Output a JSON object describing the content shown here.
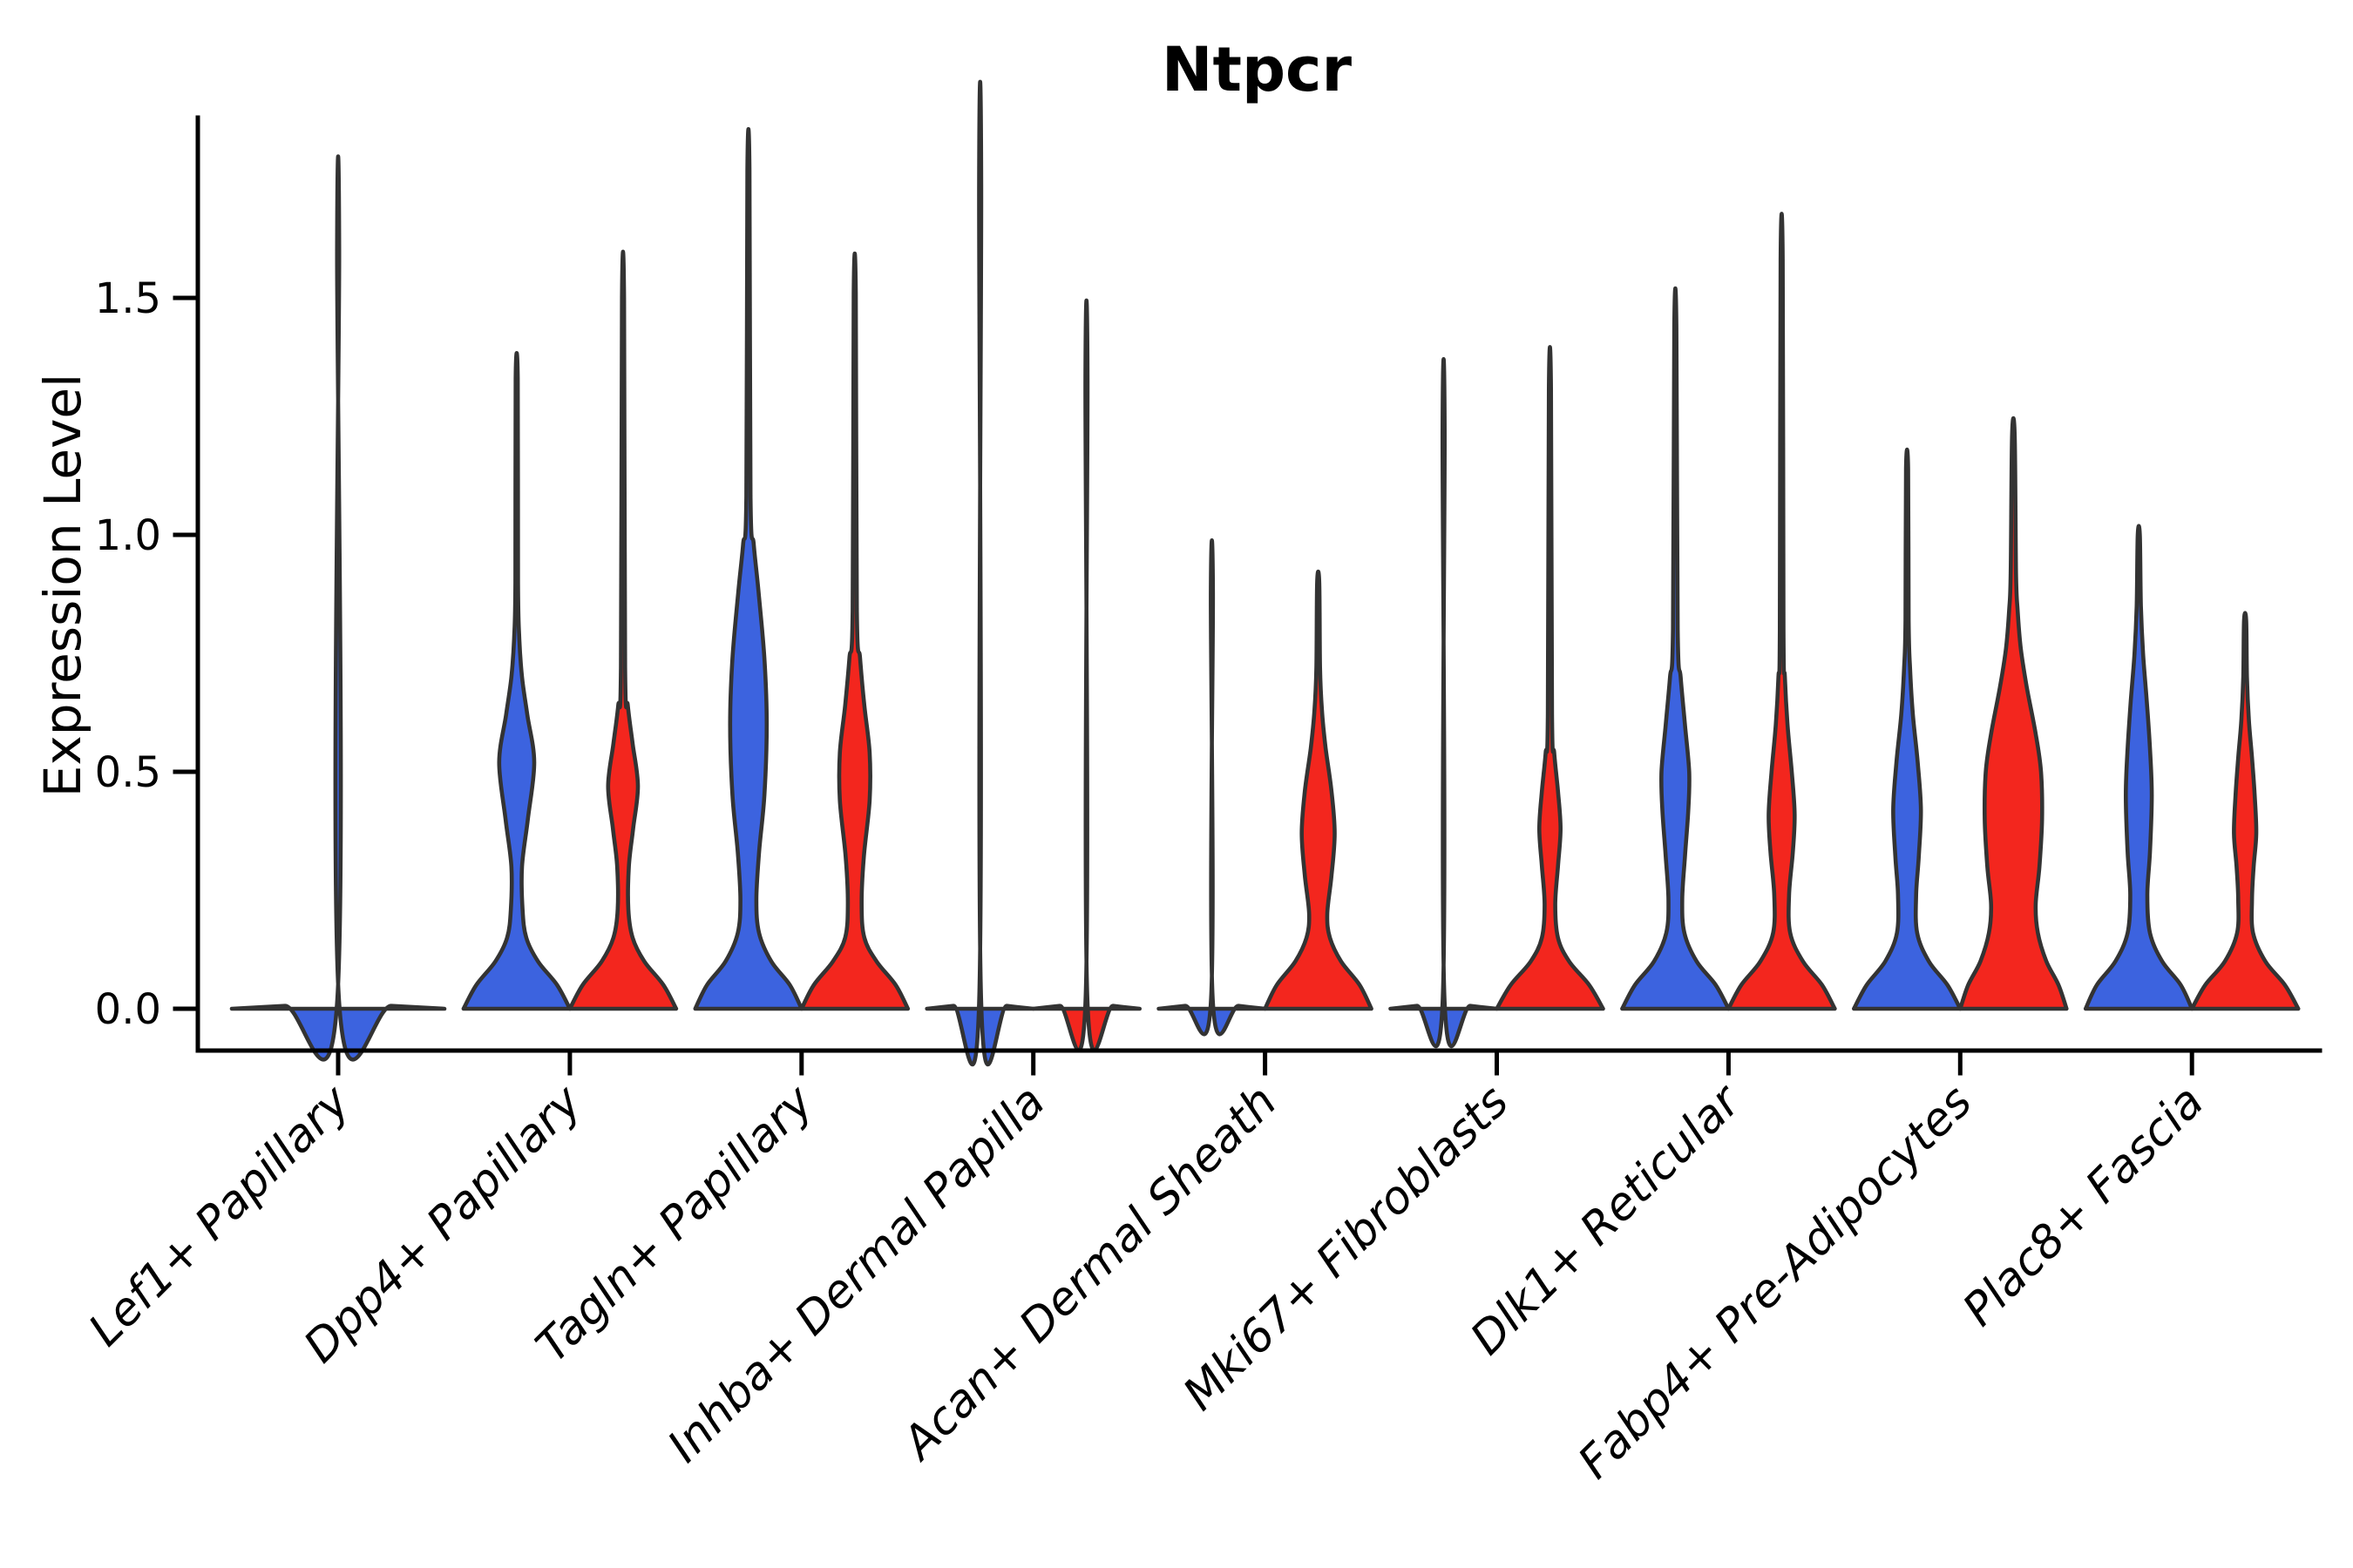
{
  "title": "Ntpcr",
  "ylabel": "Expression Level",
  "palette": {
    "blue": "#3C63DF",
    "red": "#F3261E",
    "edge": "#333333",
    "axis": "#000000"
  },
  "chart_data": {
    "type": "violin",
    "title": "Ntpcr",
    "xlabel": "",
    "ylabel": "Expression Level",
    "ylim": [
      -0.06,
      1.88
    ],
    "grid": false,
    "legend": "none",
    "yticks": [
      {
        "value": 0.0,
        "label": "0.0"
      },
      {
        "value": 0.5,
        "label": "0.5"
      },
      {
        "value": 1.0,
        "label": "1.0"
      },
      {
        "value": 1.5,
        "label": "1.5"
      }
    ],
    "categories": [
      "Lef1+ Papillary",
      "Dpp4+ Papillary",
      "Tagln+ Papillary",
      "Inhba+ Dermal Papilla",
      "Acan+ Dermal Sheath",
      "Mki67+ Fibroblasts",
      "Dlk1+ Reticular",
      "Fabp4+ Pre-Adipocytes",
      "Plac8+ Fascia"
    ],
    "violins": [
      {
        "category": "Lef1+ Papillary",
        "parts": [
          {
            "fill": "blue",
            "side": "single",
            "max_value": 1.6,
            "profile": [
              [
                0,
                2.0
              ],
              [
                0.006,
                1.0
              ],
              [
                0.012,
                0.02
              ],
              [
                1.6,
                0.02
              ]
            ]
          }
        ]
      },
      {
        "category": "Dpp4+ Papillary",
        "parts": [
          {
            "fill": "blue",
            "side": "left",
            "max_value": 1.33,
            "profile": [
              [
                0,
                1
              ],
              [
                0.05,
                0.76
              ],
              [
                0.1,
                0.4
              ],
              [
                0.15,
                0.18
              ],
              [
                0.21,
                0.11
              ],
              [
                0.3,
                0.1
              ],
              [
                0.4,
                0.21
              ],
              [
                0.52,
                0.33
              ],
              [
                0.62,
                0.2
              ],
              [
                0.7,
                0.1
              ],
              [
                0.78,
                0.05
              ],
              [
                0.9,
                0.025
              ],
              [
                1.33,
                0.02
              ]
            ]
          },
          {
            "fill": "red",
            "side": "right",
            "max_value": 1.5,
            "profile": [
              [
                0,
                1
              ],
              [
                0.05,
                0.76
              ],
              [
                0.1,
                0.4
              ],
              [
                0.15,
                0.18
              ],
              [
                0.21,
                0.1
              ],
              [
                0.3,
                0.11
              ],
              [
                0.38,
                0.19
              ],
              [
                0.47,
                0.28
              ],
              [
                0.56,
                0.18
              ],
              [
                0.64,
                0.09
              ],
              [
                0.72,
                0.04
              ],
              [
                1.5,
                0.02
              ]
            ]
          }
        ]
      },
      {
        "category": "Tagln+ Papillary",
        "parts": [
          {
            "fill": "blue",
            "side": "left",
            "max_value": 1.77,
            "profile": [
              [
                0,
                1
              ],
              [
                0.05,
                0.78
              ],
              [
                0.1,
                0.43
              ],
              [
                0.16,
                0.2
              ],
              [
                0.23,
                0.15
              ],
              [
                0.33,
                0.2
              ],
              [
                0.45,
                0.3
              ],
              [
                0.6,
                0.345
              ],
              [
                0.74,
                0.3
              ],
              [
                0.88,
                0.19
              ],
              [
                0.98,
                0.1
              ],
              [
                1.08,
                0.04
              ],
              [
                1.77,
                0.02
              ]
            ]
          },
          {
            "fill": "red",
            "side": "right",
            "max_value": 1.51,
            "profile": [
              [
                0,
                1
              ],
              [
                0.05,
                0.77
              ],
              [
                0.1,
                0.41
              ],
              [
                0.15,
                0.18
              ],
              [
                0.22,
                0.13
              ],
              [
                0.32,
                0.17
              ],
              [
                0.44,
                0.28
              ],
              [
                0.54,
                0.28
              ],
              [
                0.64,
                0.18
              ],
              [
                0.74,
                0.1
              ],
              [
                0.84,
                0.04
              ],
              [
                1.51,
                0.02
              ]
            ]
          }
        ]
      },
      {
        "category": "Inhba+ Dermal Papilla",
        "parts": [
          {
            "fill": "blue",
            "side": "left",
            "max_value": 1.74,
            "profile": [
              [
                0,
                1
              ],
              [
                0.006,
                0.5
              ],
              [
                0.012,
                0.02
              ],
              [
                1.74,
                0.02
              ]
            ]
          },
          {
            "fill": "red",
            "side": "right",
            "max_value": 1.33,
            "profile": [
              [
                0,
                1
              ],
              [
                0.006,
                0.5
              ],
              [
                0.012,
                0.02
              ],
              [
                1.33,
                0.02
              ]
            ]
          }
        ]
      },
      {
        "category": "Acan+ Dermal Sheath",
        "parts": [
          {
            "fill": "blue",
            "side": "left",
            "max_value": 0.88,
            "profile": [
              [
                0,
                1
              ],
              [
                0.006,
                0.5
              ],
              [
                0.012,
                0.02
              ],
              [
                0.88,
                0.02
              ]
            ]
          },
          {
            "fill": "red",
            "side": "right",
            "max_value": 0.9,
            "profile": [
              [
                0,
                1
              ],
              [
                0.05,
                0.78
              ],
              [
                0.1,
                0.43
              ],
              [
                0.15,
                0.22
              ],
              [
                0.2,
                0.17
              ],
              [
                0.28,
                0.25
              ],
              [
                0.37,
                0.31
              ],
              [
                0.46,
                0.25
              ],
              [
                0.55,
                0.14
              ],
              [
                0.63,
                0.07
              ],
              [
                0.72,
                0.035
              ],
              [
                0.9,
                0.02
              ]
            ]
          }
        ]
      },
      {
        "category": "Mki67+ Fibroblasts",
        "parts": [
          {
            "fill": "blue",
            "side": "left",
            "max_value": 1.22,
            "profile": [
              [
                0,
                1
              ],
              [
                0.006,
                0.5
              ],
              [
                0.012,
                0.02
              ],
              [
                1.22,
                0.02
              ]
            ]
          },
          {
            "fill": "red",
            "side": "right",
            "max_value": 1.31,
            "profile": [
              [
                0,
                1
              ],
              [
                0.05,
                0.74
              ],
              [
                0.1,
                0.36
              ],
              [
                0.15,
                0.15
              ],
              [
                0.22,
                0.1
              ],
              [
                0.3,
                0.15
              ],
              [
                0.38,
                0.2
              ],
              [
                0.46,
                0.15
              ],
              [
                0.54,
                0.08
              ],
              [
                0.62,
                0.04
              ],
              [
                1.31,
                0.02
              ]
            ]
          }
        ]
      },
      {
        "category": "Dlk1+ Reticular",
        "parts": [
          {
            "fill": "blue",
            "side": "left",
            "max_value": 1.44,
            "profile": [
              [
                0,
                1
              ],
              [
                0.05,
                0.76
              ],
              [
                0.1,
                0.4
              ],
              [
                0.16,
                0.17
              ],
              [
                0.23,
                0.13
              ],
              [
                0.32,
                0.18
              ],
              [
                0.42,
                0.245
              ],
              [
                0.5,
                0.26
              ],
              [
                0.6,
                0.18
              ],
              [
                0.7,
                0.1
              ],
              [
                0.8,
                0.045
              ],
              [
                1.44,
                0.02
              ]
            ]
          },
          {
            "fill": "red",
            "side": "right",
            "max_value": 1.58,
            "profile": [
              [
                0,
                1
              ],
              [
                0.05,
                0.76
              ],
              [
                0.1,
                0.4
              ],
              [
                0.16,
                0.16
              ],
              [
                0.24,
                0.14
              ],
              [
                0.33,
                0.21
              ],
              [
                0.41,
                0.245
              ],
              [
                0.5,
                0.19
              ],
              [
                0.6,
                0.11
              ],
              [
                0.7,
                0.06
              ],
              [
                0.8,
                0.035
              ],
              [
                1.58,
                0.02
              ]
            ]
          }
        ]
      },
      {
        "category": "Fabp4+ Pre-Adipocytes",
        "parts": [
          {
            "fill": "blue",
            "side": "left",
            "max_value": 1.14,
            "profile": [
              [
                0,
                1
              ],
              [
                0.05,
                0.76
              ],
              [
                0.1,
                0.41
              ],
              [
                0.16,
                0.19
              ],
              [
                0.24,
                0.17
              ],
              [
                0.32,
                0.22
              ],
              [
                0.42,
                0.26
              ],
              [
                0.52,
                0.2
              ],
              [
                0.62,
                0.11
              ],
              [
                0.72,
                0.055
              ],
              [
                0.82,
                0.03
              ],
              [
                1.14,
                0.02
              ]
            ]
          },
          {
            "fill": "red",
            "side": "right",
            "max_value": 1.21,
            "profile": [
              [
                0,
                1
              ],
              [
                0.05,
                0.85
              ],
              [
                0.1,
                0.62
              ],
              [
                0.16,
                0.46
              ],
              [
                0.22,
                0.42
              ],
              [
                0.3,
                0.49
              ],
              [
                0.4,
                0.54
              ],
              [
                0.5,
                0.52
              ],
              [
                0.58,
                0.42
              ],
              [
                0.68,
                0.25
              ],
              [
                0.76,
                0.14
              ],
              [
                0.84,
                0.08
              ],
              [
                0.92,
                0.05
              ],
              [
                1.21,
                0.025
              ]
            ]
          }
        ]
      },
      {
        "category": "Plac8+ Fascia",
        "parts": [
          {
            "fill": "blue",
            "side": "left",
            "max_value": 1.0,
            "profile": [
              [
                0,
                1
              ],
              [
                0.05,
                0.79
              ],
              [
                0.1,
                0.44
              ],
              [
                0.16,
                0.21
              ],
              [
                0.24,
                0.16
              ],
              [
                0.33,
                0.21
              ],
              [
                0.45,
                0.245
              ],
              [
                0.55,
                0.21
              ],
              [
                0.65,
                0.15
              ],
              [
                0.75,
                0.08
              ],
              [
                0.85,
                0.04
              ],
              [
                1.0,
                0.02
              ]
            ]
          },
          {
            "fill": "red",
            "side": "right",
            "max_value": 0.82,
            "profile": [
              [
                0,
                1
              ],
              [
                0.05,
                0.75
              ],
              [
                0.1,
                0.38
              ],
              [
                0.16,
                0.15
              ],
              [
                0.23,
                0.13
              ],
              [
                0.3,
                0.16
              ],
              [
                0.37,
                0.21
              ],
              [
                0.45,
                0.18
              ],
              [
                0.53,
                0.13
              ],
              [
                0.61,
                0.07
              ],
              [
                0.7,
                0.035
              ],
              [
                0.82,
                0.02
              ]
            ]
          }
        ]
      }
    ]
  }
}
